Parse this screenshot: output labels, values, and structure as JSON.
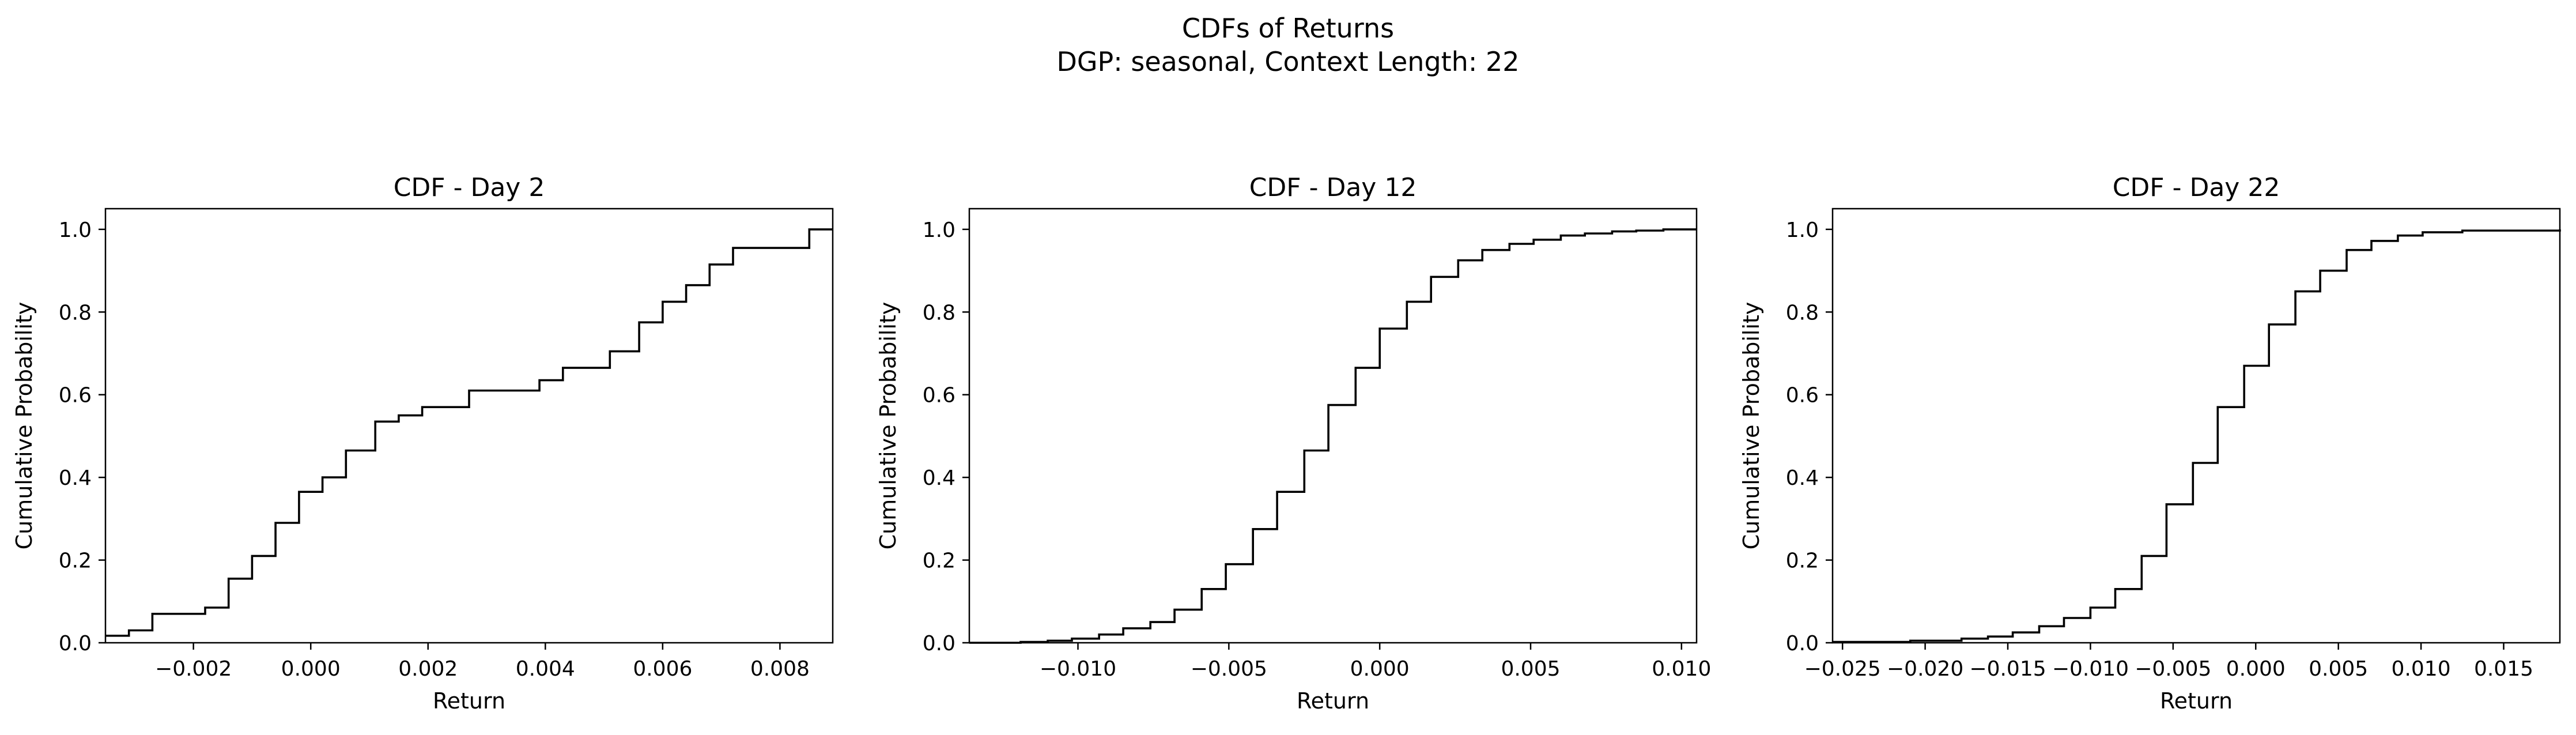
{
  "figure": {
    "title_line1": "CDFs of Returns",
    "title_line2": "DGP: seasonal, Context Length: 22"
  },
  "chart_data": [
    {
      "type": "line",
      "step": "post",
      "title": "CDF - Day 2",
      "xlabel": "Return",
      "ylabel": "Cumulative Probability",
      "xlim": [
        -0.0035,
        0.0089
      ],
      "ylim": [
        0.0,
        1.05
      ],
      "xticks": [
        -0.002,
        0.0,
        0.002,
        0.004,
        0.006,
        0.008
      ],
      "xtick_labels": [
        "−0.002",
        "0.000",
        "0.002",
        "0.004",
        "0.006",
        "0.008"
      ],
      "yticks": [
        0.0,
        0.2,
        0.4,
        0.6,
        0.8,
        1.0
      ],
      "ytick_labels": [
        "0.0",
        "0.2",
        "0.4",
        "0.6",
        "0.8",
        "1.0"
      ],
      "grid": false,
      "x": [
        -0.0035,
        -0.0031,
        -0.0027,
        -0.0018,
        -0.0014,
        -0.001,
        -0.0006,
        -0.0002,
        0.0002,
        0.0006,
        0.0011,
        0.0015,
        0.0019,
        0.0027,
        0.0039,
        0.0043,
        0.0051,
        0.0056,
        0.006,
        0.0064,
        0.0068,
        0.0072,
        0.0085,
        0.0089
      ],
      "y": [
        0.017,
        0.03,
        0.07,
        0.085,
        0.155,
        0.21,
        0.29,
        0.365,
        0.4,
        0.465,
        0.535,
        0.55,
        0.57,
        0.61,
        0.635,
        0.665,
        0.705,
        0.775,
        0.825,
        0.865,
        0.915,
        0.955,
        1.0,
        1.0
      ]
    },
    {
      "type": "line",
      "step": "post",
      "title": "CDF - Day 12",
      "xlabel": "Return",
      "ylabel": "Cumulative Probability",
      "xlim": [
        -0.0136,
        0.0105
      ],
      "ylim": [
        0.0,
        1.05
      ],
      "xticks": [
        -0.01,
        -0.005,
        0.0,
        0.005,
        0.01
      ],
      "xtick_labels": [
        "−0.010",
        "−0.005",
        "0.000",
        "0.005",
        "0.010"
      ],
      "yticks": [
        0.0,
        0.2,
        0.4,
        0.6,
        0.8,
        1.0
      ],
      "ytick_labels": [
        "0.0",
        "0.2",
        "0.4",
        "0.6",
        "0.8",
        "1.0"
      ],
      "grid": false,
      "x": [
        -0.0136,
        -0.0119,
        -0.011,
        -0.0102,
        -0.0093,
        -0.0085,
        -0.0076,
        -0.0068,
        -0.0059,
        -0.0051,
        -0.0042,
        -0.0034,
        -0.0025,
        -0.0017,
        -0.0008,
        0.0,
        0.0009,
        0.0017,
        0.0026,
        0.0034,
        0.0043,
        0.0051,
        0.006,
        0.0068,
        0.0077,
        0.0085,
        0.0094,
        0.0105
      ],
      "y": [
        0.0,
        0.002,
        0.005,
        0.01,
        0.02,
        0.035,
        0.05,
        0.08,
        0.13,
        0.19,
        0.275,
        0.365,
        0.465,
        0.575,
        0.665,
        0.76,
        0.825,
        0.885,
        0.925,
        0.95,
        0.965,
        0.975,
        0.985,
        0.99,
        0.995,
        0.997,
        1.0,
        1.0
      ]
    },
    {
      "type": "line",
      "step": "post",
      "title": "CDF - Day 22",
      "xlabel": "Return",
      "ylabel": "Cumulative Probability",
      "xlim": [
        -0.0256,
        0.0184
      ],
      "ylim": [
        0.0,
        1.05
      ],
      "xticks": [
        -0.025,
        -0.02,
        -0.015,
        -0.01,
        -0.005,
        0.0,
        0.005,
        0.01,
        0.015
      ],
      "xtick_labels": [
        "−0.025",
        "−0.020",
        "−0.015",
        "−0.010",
        "−0.005",
        "0.000",
        "0.005",
        "0.010",
        "0.015"
      ],
      "yticks": [
        0.0,
        0.2,
        0.4,
        0.6,
        0.8,
        1.0
      ],
      "ytick_labels": [
        "0.0",
        "0.2",
        "0.4",
        "0.6",
        "0.8",
        "1.0"
      ],
      "grid": false,
      "x": [
        -0.0256,
        -0.0209,
        -0.0178,
        -0.0162,
        -0.0147,
        -0.0131,
        -0.0116,
        -0.01,
        -0.0085,
        -0.0069,
        -0.0054,
        -0.0038,
        -0.0023,
        -0.0007,
        0.0008,
        0.0024,
        0.0039,
        0.0055,
        0.007,
        0.0086,
        0.0101,
        0.0125,
        0.0184
      ],
      "y": [
        0.002,
        0.005,
        0.01,
        0.015,
        0.025,
        0.04,
        0.06,
        0.085,
        0.13,
        0.21,
        0.335,
        0.435,
        0.57,
        0.67,
        0.77,
        0.85,
        0.9,
        0.95,
        0.972,
        0.985,
        0.993,
        0.997,
        1.0
      ]
    }
  ]
}
